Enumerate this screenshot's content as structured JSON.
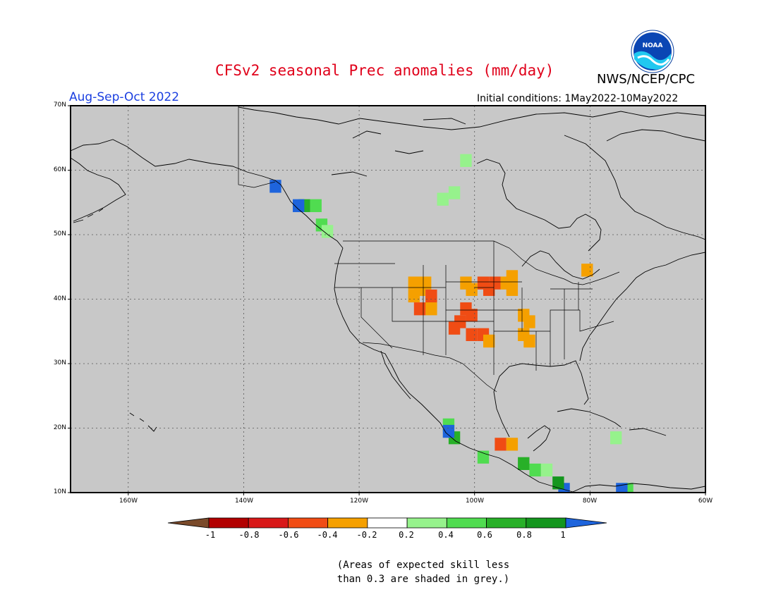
{
  "header": {
    "title": "CFSv2 seasonal Prec anomalies (mm/day)",
    "org": "NWS/NCEP/CPC",
    "period": "Aug-Sep-Oct 2022",
    "initial_conditions": "Initial conditions: 1May2022-10May2022",
    "logo_text": "NOAA"
  },
  "map": {
    "lat_labels": [
      "70N",
      "60N",
      "50N",
      "40N",
      "30N",
      "20N",
      "10N"
    ],
    "lon_labels": [
      "160W",
      "140W",
      "120W",
      "100W",
      "80W",
      "60W"
    ],
    "background_color": "#c8c8c8",
    "anomaly_cells": [
      {
        "lat": 43,
        "lon": -111,
        "value": -0.3
      },
      {
        "lat": 43,
        "lon": -109,
        "value": -0.3
      },
      {
        "lat": 42,
        "lon": -110,
        "value": -0.3
      },
      {
        "lat": 41,
        "lon": -111,
        "value": -0.3
      },
      {
        "lat": 40,
        "lon": -108,
        "value": -0.3
      },
      {
        "lat": 39,
        "lon": -108,
        "value": -0.3
      },
      {
        "lat": 41,
        "lon": -108,
        "value": -0.5
      },
      {
        "lat": 39,
        "lon": -110,
        "value": -0.5
      },
      {
        "lat": 43,
        "lon": -102,
        "value": -0.3
      },
      {
        "lat": 43,
        "lon": -99,
        "value": -0.5
      },
      {
        "lat": 43,
        "lon": -97,
        "value": -0.5
      },
      {
        "lat": 42,
        "lon": -98,
        "value": -0.5
      },
      {
        "lat": 43,
        "lon": -95,
        "value": -0.3
      },
      {
        "lat": 42,
        "lon": -94,
        "value": -0.3
      },
      {
        "lat": 44,
        "lon": -94,
        "value": -0.3
      },
      {
        "lat": 42,
        "lon": -101,
        "value": -0.3
      },
      {
        "lat": 39,
        "lon": -102,
        "value": -0.5
      },
      {
        "lat": 38,
        "lon": -101,
        "value": -0.5
      },
      {
        "lat": 37,
        "lon": -103,
        "value": -0.5
      },
      {
        "lat": 36,
        "lon": -104,
        "value": -0.5
      },
      {
        "lat": 35,
        "lon": -101,
        "value": -0.5
      },
      {
        "lat": 35,
        "lon": -99,
        "value": -0.5
      },
      {
        "lat": 34,
        "lon": -98,
        "value": -0.3
      },
      {
        "lat": 38,
        "lon": -92,
        "value": -0.3
      },
      {
        "lat": 37,
        "lon": -91,
        "value": -0.3
      },
      {
        "lat": 35,
        "lon": -92,
        "value": -0.3
      },
      {
        "lat": 34,
        "lon": -91,
        "value": -0.3
      },
      {
        "lat": 45,
        "lon": -81,
        "value": -0.3
      },
      {
        "lat": 18,
        "lon": -96,
        "value": -0.5
      },
      {
        "lat": 18,
        "lon": -94,
        "value": -0.3
      },
      {
        "lat": 62,
        "lon": -102,
        "value": 0.3
      },
      {
        "lat": 57,
        "lon": -104,
        "value": 0.3
      },
      {
        "lat": 56,
        "lon": -106,
        "value": 0.3
      },
      {
        "lat": 55,
        "lon": -128,
        "value": 0.5
      },
      {
        "lat": 52,
        "lon": -127,
        "value": 0.5
      },
      {
        "lat": 51,
        "lon": -126,
        "value": 0.3
      },
      {
        "lat": 55,
        "lon": -130,
        "value": 0.7
      },
      {
        "lat": 21,
        "lon": -105,
        "value": 0.5
      },
      {
        "lat": 19,
        "lon": -104,
        "value": 0.7
      },
      {
        "lat": 16,
        "lon": -99,
        "value": 0.5
      },
      {
        "lat": 15,
        "lon": -92,
        "value": 0.7
      },
      {
        "lat": 14,
        "lon": -90,
        "value": 0.5
      },
      {
        "lat": 14,
        "lon": -88,
        "value": 0.3
      },
      {
        "lat": 11,
        "lon": -74,
        "value": 0.5
      },
      {
        "lat": 19,
        "lon": -76,
        "value": 0.3
      },
      {
        "lat": 58,
        "lon": -135,
        "value": 1.1
      },
      {
        "lat": 55,
        "lon": -131,
        "value": 1.1
      },
      {
        "lat": 20,
        "lon": -105,
        "value": 1.1
      },
      {
        "lat": 11,
        "lon": -85,
        "value": 1.1
      },
      {
        "lat": 11,
        "lon": -75,
        "value": 1.1
      },
      {
        "lat": 12,
        "lon": -86,
        "value": 0.9
      }
    ]
  },
  "colorbar": {
    "labels": [
      "-1",
      "-0.8",
      "-0.6",
      "-0.4",
      "-0.2",
      "0.2",
      "0.4",
      "0.6",
      "0.8",
      "1"
    ],
    "colors": [
      "#7a4a2a",
      "#b20000",
      "#d81818",
      "#f04c14",
      "#f5a000",
      "#ffffff",
      "#96f28c",
      "#50dc50",
      "#28b028",
      "#14961e",
      "#1e64dc"
    ]
  },
  "note": {
    "line1": "(Areas of expected skill less",
    "line2": "than 0.3 are shaded in grey.)"
  }
}
